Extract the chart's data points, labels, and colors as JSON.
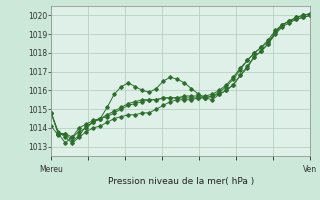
{
  "title": "Pression niveau de la mer( hPa )",
  "xlabel_left": "Mereu",
  "xlabel_right": "Ven",
  "ylim": [
    1012.5,
    1020.5
  ],
  "yticks": [
    1013,
    1014,
    1015,
    1016,
    1017,
    1018,
    1019,
    1020
  ],
  "bg_color": "#cce8d8",
  "plot_bg_color": "#dff0e8",
  "grid_color": "#b0ccbb",
  "line_color": "#2d6e2d",
  "marker_color": "#2d6e2d",
  "series1": [
    1014.8,
    1013.7,
    1013.7,
    1013.3,
    1013.6,
    1014.1,
    1014.3,
    1014.5,
    1015.1,
    1015.8,
    1016.2,
    1016.4,
    1016.2,
    1016.0,
    1015.9,
    1016.1,
    1016.5,
    1016.7,
    1016.6,
    1016.4,
    1016.1,
    1015.8,
    1015.6,
    1015.5,
    1015.8,
    1016.0,
    1016.3,
    1016.8,
    1017.2,
    1017.8,
    1018.1,
    1018.5,
    1019.1,
    1019.5,
    1019.7,
    1019.8,
    1019.9,
    1020.0
  ],
  "series2": [
    1014.1,
    1013.6,
    1013.7,
    1013.5,
    1014.0,
    1014.2,
    1014.4,
    1014.5,
    1014.6,
    1014.8,
    1015.0,
    1015.2,
    1015.3,
    1015.4,
    1015.5,
    1015.5,
    1015.6,
    1015.6,
    1015.6,
    1015.6,
    1015.6,
    1015.6,
    1015.6,
    1015.7,
    1015.8,
    1016.0,
    1016.3,
    1016.8,
    1017.3,
    1017.8,
    1018.1,
    1018.5,
    1019.0,
    1019.4,
    1019.6,
    1019.8,
    1019.9,
    1020.0
  ],
  "series3": [
    1014.8,
    1013.8,
    1013.5,
    1013.2,
    1013.5,
    1013.8,
    1014.0,
    1014.1,
    1014.3,
    1014.5,
    1014.6,
    1014.7,
    1014.7,
    1014.8,
    1014.8,
    1015.0,
    1015.2,
    1015.4,
    1015.5,
    1015.5,
    1015.5,
    1015.6,
    1015.6,
    1015.7,
    1015.9,
    1016.2,
    1016.6,
    1017.1,
    1017.6,
    1018.0,
    1018.3,
    1018.7,
    1019.2,
    1019.5,
    1019.7,
    1019.9,
    1020.0,
    1020.1
  ],
  "series4": [
    1014.8,
    1013.7,
    1013.2,
    1013.5,
    1013.8,
    1014.0,
    1014.3,
    1014.5,
    1014.7,
    1014.9,
    1015.1,
    1015.3,
    1015.4,
    1015.5,
    1015.5,
    1015.5,
    1015.6,
    1015.6,
    1015.6,
    1015.7,
    1015.7,
    1015.7,
    1015.7,
    1015.8,
    1016.0,
    1016.3,
    1016.7,
    1017.2,
    1017.6,
    1018.0,
    1018.3,
    1018.6,
    1019.1,
    1019.5,
    1019.7,
    1019.9,
    1020.0,
    1020.1
  ]
}
